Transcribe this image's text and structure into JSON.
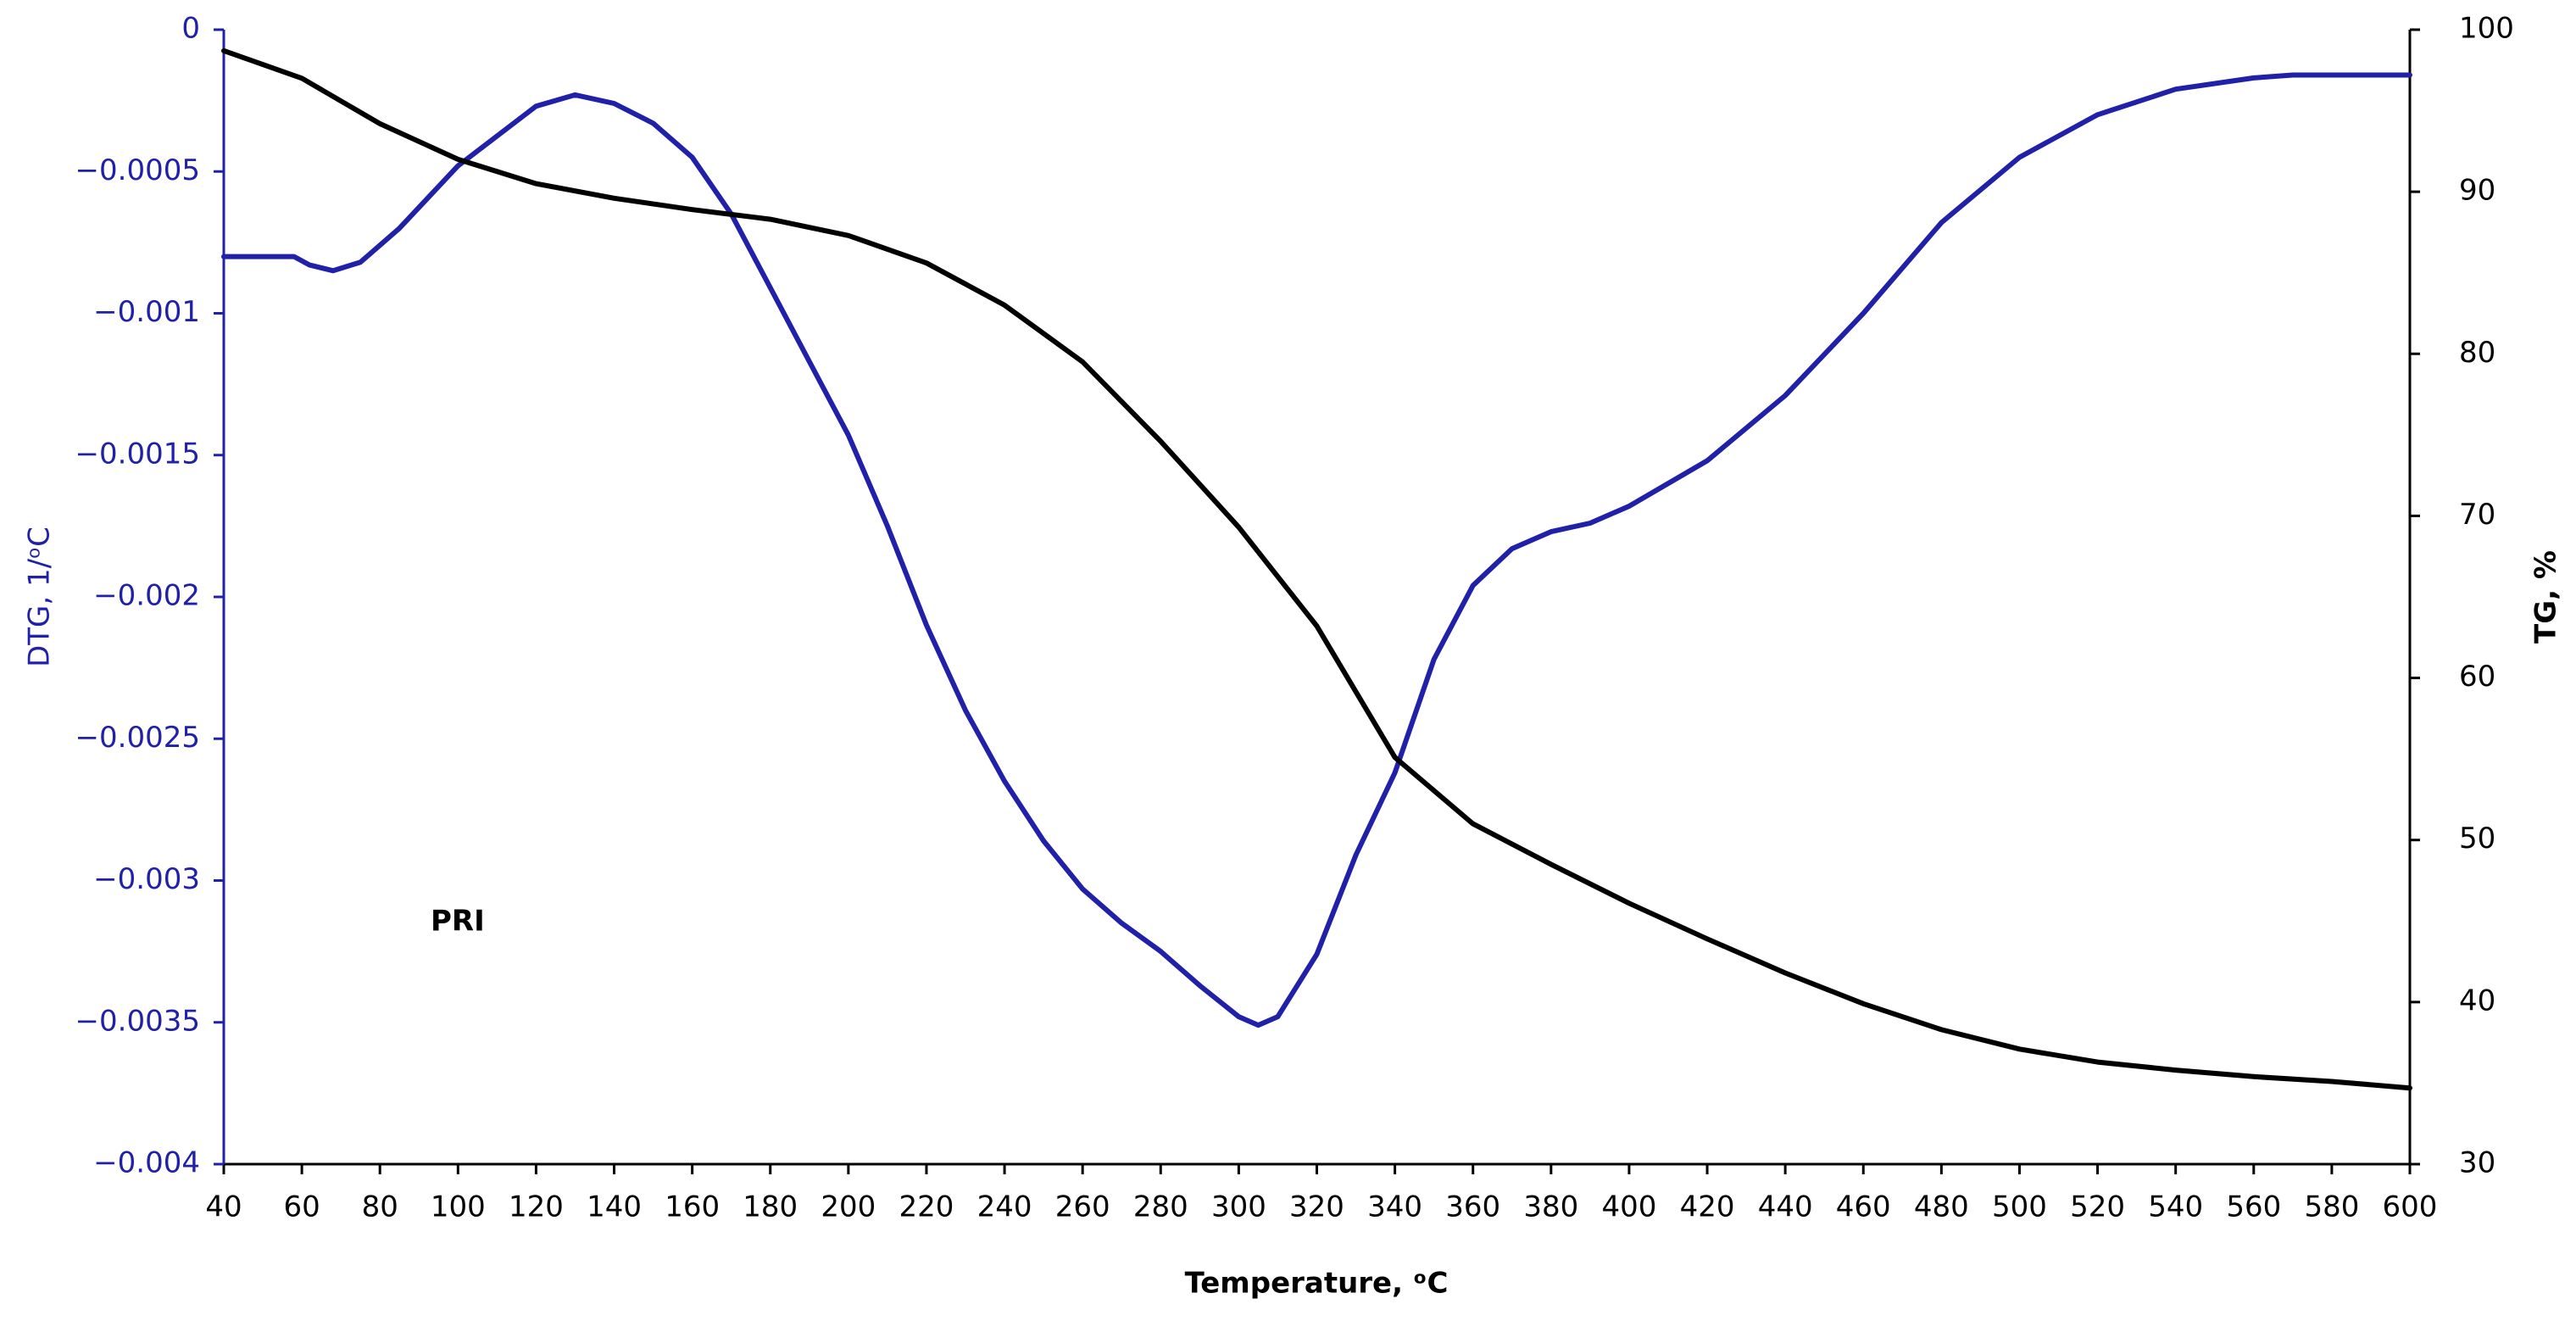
{
  "chart_data": {
    "type": "line",
    "annotation": "PRI",
    "xlabel": "Temperature, ᵒC",
    "ylabel": "DTG, 1/ᵒC",
    "y2label": "TG, %",
    "xlim": [
      40,
      600
    ],
    "xticks": [
      40,
      60,
      80,
      100,
      120,
      140,
      160,
      180,
      200,
      220,
      240,
      260,
      280,
      300,
      320,
      340,
      360,
      380,
      400,
      420,
      440,
      460,
      480,
      500,
      520,
      540,
      560,
      580,
      600
    ],
    "ylim": [
      -0.004,
      0
    ],
    "yticks": [
      {
        "value": -0.004,
        "label": "−0.004"
      },
      {
        "value": -0.0035,
        "label": "−0.0035"
      },
      {
        "value": -0.003,
        "label": "−0.003"
      },
      {
        "value": -0.0025,
        "label": "−0.0025"
      },
      {
        "value": -0.002,
        "label": "−0.002"
      },
      {
        "value": -0.0015,
        "label": "−0.0015"
      },
      {
        "value": -0.001,
        "label": "−0.001"
      },
      {
        "value": -0.0005,
        "label": "−0.0005"
      },
      0
    ],
    "y2lim": [
      30,
      100
    ],
    "y2ticks": [
      30,
      40,
      50,
      60,
      70,
      80,
      90,
      100
    ],
    "series": [
      {
        "name": "DTG",
        "color": "#2020a8",
        "axis": "y",
        "x": [
          40,
          58,
          62,
          68,
          75,
          85,
          100,
          120,
          130,
          140,
          150,
          160,
          170,
          180,
          190,
          200,
          210,
          220,
          230,
          240,
          250,
          260,
          270,
          280,
          290,
          300,
          305,
          310,
          320,
          330,
          340,
          350,
          360,
          370,
          380,
          390,
          400,
          420,
          440,
          460,
          480,
          500,
          520,
          540,
          560,
          570,
          600
        ],
        "values": [
          -0.0008,
          -0.0008,
          -0.00083,
          -0.00085,
          -0.00082,
          -0.0007,
          -0.00048,
          -0.00027,
          -0.00023,
          -0.00026,
          -0.00033,
          -0.00045,
          -0.00065,
          -0.00091,
          -0.00117,
          -0.00143,
          -0.00175,
          -0.0021,
          -0.0024,
          -0.00265,
          -0.00286,
          -0.00303,
          -0.00315,
          -0.00325,
          -0.00337,
          -0.00348,
          -0.00351,
          -0.00348,
          -0.00326,
          -0.00291,
          -0.00262,
          -0.00222,
          -0.00196,
          -0.00183,
          -0.00177,
          -0.00174,
          -0.00168,
          -0.00152,
          -0.00129,
          -0.001,
          -0.00068,
          -0.00045,
          -0.0003,
          -0.00021,
          -0.00017,
          -0.00016,
          -0.00016
        ]
      },
      {
        "name": "TG",
        "color": "#000000",
        "axis": "y2",
        "x": [
          40,
          60,
          80,
          100,
          120,
          140,
          160,
          180,
          200,
          220,
          240,
          260,
          280,
          300,
          320,
          340,
          360,
          380,
          400,
          420,
          440,
          460,
          480,
          500,
          520,
          540,
          560,
          580,
          600
        ],
        "values": [
          98.7,
          97,
          94.2,
          92,
          90.5,
          89.6,
          88.9,
          88.3,
          87.3,
          85.6,
          83,
          79.5,
          74.6,
          69.3,
          63.2,
          55.1,
          51,
          48.5,
          46.1,
          43.9,
          41.8,
          39.9,
          38.3,
          37.1,
          36.3,
          35.8,
          35.4,
          35.1,
          34.7
        ]
      }
    ]
  }
}
